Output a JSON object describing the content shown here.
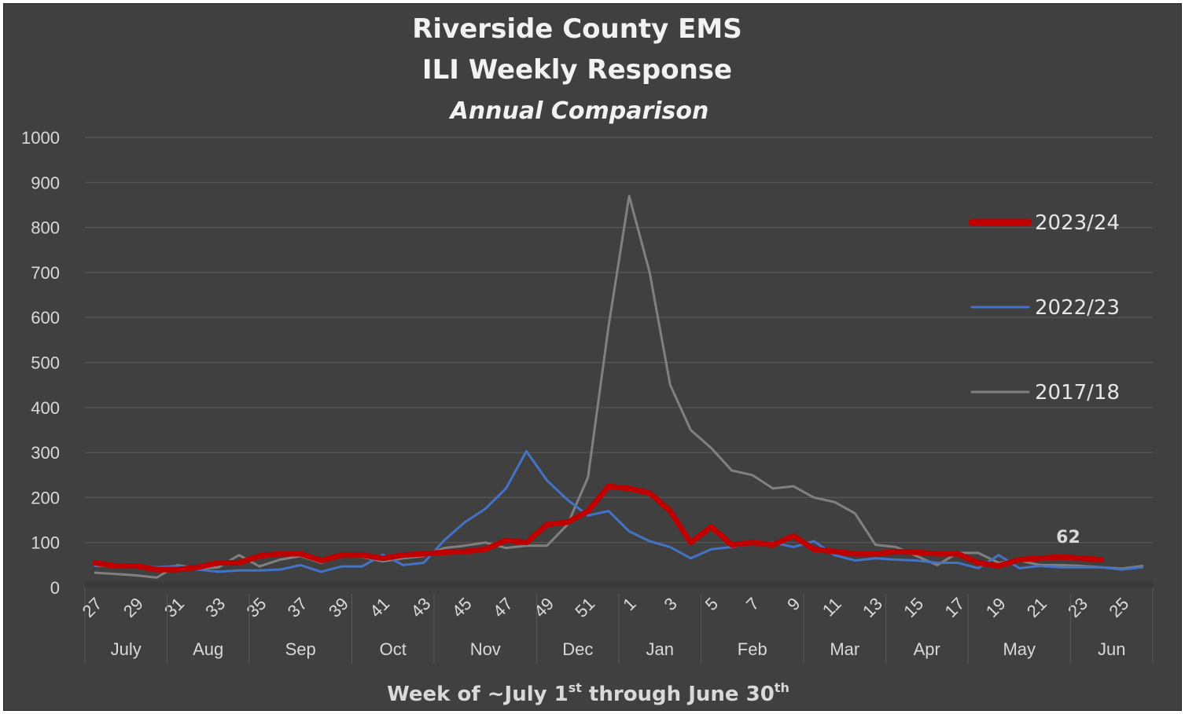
{
  "chart_data": {
    "type": "line",
    "title": [
      "Riverside County EMS",
      "ILI Weekly Response"
    ],
    "subtitle": "Annual Comparison",
    "xlabel": {
      "before": "Week of ~July 1",
      "sup1": "st",
      "middle": " through June 30",
      "sup2": "th"
    },
    "ylabel": "",
    "ylim": [
      0,
      1000
    ],
    "yticks": [
      0,
      100,
      200,
      300,
      400,
      500,
      600,
      700,
      800,
      900,
      1000
    ],
    "grid": true,
    "legend_position": "right",
    "x": [
      27,
      28,
      29,
      30,
      31,
      32,
      33,
      34,
      35,
      36,
      37,
      38,
      39,
      40,
      41,
      42,
      43,
      44,
      45,
      46,
      47,
      48,
      49,
      50,
      51,
      52,
      1,
      2,
      3,
      4,
      5,
      6,
      7,
      8,
      9,
      10,
      11,
      12,
      13,
      14,
      15,
      16,
      17,
      18,
      19,
      20,
      21,
      22,
      23,
      24,
      25,
      26
    ],
    "x_tick_labels": [
      "27",
      "29",
      "31",
      "33",
      "35",
      "37",
      "39",
      "41",
      "43",
      "45",
      "47",
      "49",
      "51",
      "1",
      "3",
      "5",
      "7",
      "9",
      "11",
      "13",
      "15",
      "17",
      "19",
      "21",
      "23",
      "25"
    ],
    "months": [
      {
        "label": "July",
        "span": 4
      },
      {
        "label": "Aug",
        "span": 4
      },
      {
        "label": "Sep",
        "span": 5
      },
      {
        "label": "Oct",
        "span": 4
      },
      {
        "label": "Nov",
        "span": 5
      },
      {
        "label": "Dec",
        "span": 4
      },
      {
        "label": "Jan",
        "span": 4
      },
      {
        "label": "Feb",
        "span": 5
      },
      {
        "label": "Mar",
        "span": 4
      },
      {
        "label": "Apr",
        "span": 4
      },
      {
        "label": "May",
        "span": 5
      },
      {
        "label": "Jun",
        "span": 4
      }
    ],
    "series": [
      {
        "name": "2023/24",
        "color": "#c00000",
        "width": 7,
        "values": [
          55,
          48,
          48,
          40,
          40,
          45,
          55,
          55,
          70,
          75,
          75,
          60,
          72,
          72,
          65,
          72,
          75,
          78,
          80,
          85,
          105,
          100,
          140,
          145,
          170,
          225,
          220,
          210,
          170,
          100,
          135,
          95,
          100,
          95,
          115,
          85,
          80,
          75,
          75,
          80,
          78,
          75,
          75,
          55,
          48,
          62,
          65,
          68,
          65,
          62,
          null,
          null
        ]
      },
      {
        "name": "2022/23",
        "color": "#4472c4",
        "width": 3,
        "values": [
          48,
          48,
          50,
          45,
          48,
          40,
          35,
          38,
          38,
          40,
          50,
          35,
          47,
          47,
          73,
          50,
          55,
          105,
          145,
          175,
          220,
          303,
          238,
          195,
          160,
          170,
          125,
          103,
          90,
          65,
          85,
          90,
          98,
          100,
          90,
          103,
          72,
          60,
          65,
          62,
          60,
          55,
          55,
          43,
          72,
          43,
          48,
          45,
          45,
          45,
          40,
          45
        ]
      },
      {
        "name": "2017/18",
        "color": "#808080",
        "width": 3,
        "values": [
          33,
          30,
          27,
          22,
          50,
          42,
          45,
          72,
          47,
          62,
          70,
          55,
          75,
          68,
          58,
          65,
          70,
          88,
          93,
          100,
          88,
          93,
          93,
          140,
          245,
          580,
          870,
          700,
          450,
          350,
          310,
          260,
          250,
          220,
          225,
          200,
          190,
          165,
          95,
          90,
          70,
          50,
          77,
          77,
          55,
          60,
          50,
          50,
          48,
          45,
          42,
          48
        ]
      }
    ],
    "annotations": [
      {
        "text": "62",
        "series": "2023/24",
        "x": 22
      }
    ]
  }
}
